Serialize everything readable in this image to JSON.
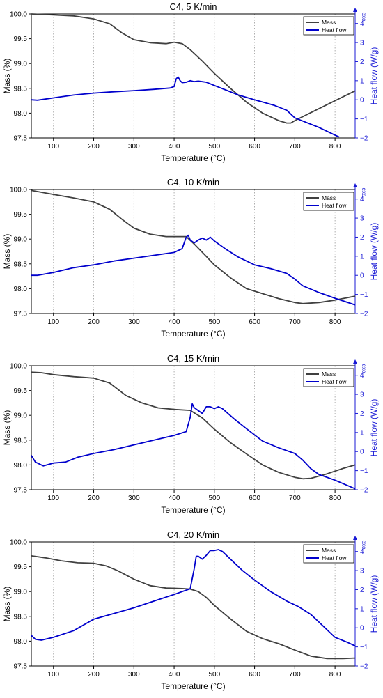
{
  "colors": {
    "mass": "#404040",
    "heat_flow": "#0000cc",
    "right_axis": "#1a1ad6",
    "grid": "#9a9a9a"
  },
  "chart_data": [
    {
      "type": "line",
      "title": "C4, 5 K/min",
      "xlabel": "Temperature (°C)",
      "ylabel": "Mass (%)",
      "y2label": "Heat flow (W/g)",
      "exo_label": "exo",
      "xlim": [
        45,
        850
      ],
      "ylim": [
        97.5,
        100.0
      ],
      "y2lim": [
        -2,
        4.5
      ],
      "xticks": [
        100,
        200,
        300,
        400,
        500,
        600,
        700,
        800
      ],
      "yticks": [
        97.5,
        98.0,
        98.5,
        99.0,
        99.5,
        100.0
      ],
      "y2ticks": [
        -2,
        -1,
        0,
        1,
        2,
        3,
        4
      ],
      "grid": "vertical-dotted",
      "legend": "top-right",
      "series": [
        {
          "name": "Mass",
          "axis": "left",
          "color": "#404040",
          "x": [
            45,
            100,
            150,
            200,
            240,
            270,
            300,
            340,
            380,
            400,
            420,
            440,
            470,
            500,
            540,
            580,
            620,
            660,
            680,
            690,
            700,
            750,
            800,
            850
          ],
          "y": [
            100.0,
            99.98,
            99.96,
            99.9,
            99.8,
            99.62,
            99.48,
            99.42,
            99.4,
            99.43,
            99.4,
            99.28,
            99.05,
            98.8,
            98.5,
            98.22,
            98.0,
            97.85,
            97.8,
            97.8,
            97.85,
            98.05,
            98.25,
            98.45
          ]
        },
        {
          "name": "Heat flow",
          "axis": "right",
          "color": "#0000cc",
          "x": [
            45,
            60,
            100,
            150,
            200,
            250,
            300,
            350,
            390,
            400,
            405,
            410,
            415,
            420,
            430,
            440,
            450,
            460,
            470,
            480,
            500,
            530,
            560,
            600,
            650,
            680,
            700,
            730,
            760,
            800,
            810
          ],
          "y": [
            0.0,
            -0.02,
            0.1,
            0.25,
            0.35,
            0.42,
            0.48,
            0.55,
            0.62,
            0.7,
            1.1,
            1.2,
            1.0,
            0.9,
            0.92,
            1.0,
            0.95,
            0.98,
            0.95,
            0.92,
            0.75,
            0.5,
            0.25,
            0.0,
            -0.3,
            -0.55,
            -0.95,
            -1.2,
            -1.45,
            -1.85,
            -1.95
          ]
        }
      ]
    },
    {
      "type": "line",
      "title": "C4, 10 K/min",
      "xlabel": "Temperature (°C)",
      "ylabel": "Mass (%)",
      "y2label": "Heat flow (W/g)",
      "exo_label": "exo",
      "xlim": [
        45,
        850
      ],
      "ylim": [
        97.5,
        100.0
      ],
      "y2lim": [
        -2,
        4.5
      ],
      "xticks": [
        100,
        200,
        300,
        400,
        500,
        600,
        700,
        800
      ],
      "yticks": [
        97.5,
        98.0,
        98.5,
        99.0,
        99.5,
        100.0
      ],
      "y2ticks": [
        -2,
        -1,
        0,
        1,
        2,
        3,
        4
      ],
      "grid": "vertical-dotted",
      "legend": "top-right",
      "series": [
        {
          "name": "Mass",
          "axis": "left",
          "color": "#404040",
          "x": [
            45,
            100,
            150,
            200,
            240,
            270,
            300,
            340,
            380,
            420,
            430,
            450,
            480,
            500,
            540,
            580,
            620,
            660,
            700,
            720,
            760,
            800,
            850
          ],
          "y": [
            99.98,
            99.9,
            99.83,
            99.75,
            99.6,
            99.4,
            99.22,
            99.1,
            99.05,
            99.05,
            99.05,
            98.9,
            98.65,
            98.48,
            98.22,
            98.0,
            97.9,
            97.8,
            97.72,
            97.7,
            97.72,
            97.77,
            97.85
          ]
        },
        {
          "name": "Heat flow",
          "axis": "right",
          "color": "#0000cc",
          "x": [
            45,
            60,
            100,
            150,
            200,
            250,
            300,
            350,
            400,
            420,
            425,
            430,
            435,
            440,
            450,
            460,
            470,
            480,
            490,
            500,
            530,
            560,
            600,
            640,
            680,
            700,
            720,
            760,
            800,
            850
          ],
          "y": [
            0.0,
            0.0,
            0.15,
            0.4,
            0.55,
            0.75,
            0.9,
            1.05,
            1.2,
            1.4,
            1.7,
            2.0,
            2.1,
            1.85,
            1.7,
            1.85,
            1.95,
            1.85,
            2.0,
            1.8,
            1.35,
            0.95,
            0.55,
            0.35,
            0.1,
            -0.2,
            -0.55,
            -0.9,
            -1.2,
            -1.55
          ]
        }
      ]
    },
    {
      "type": "line",
      "title": "C4, 15 K/min",
      "xlabel": "Temperature (°C)",
      "ylabel": "Mass (%)",
      "y2label": "Heat flow (W/g)",
      "exo_label": "exo",
      "xlim": [
        45,
        850
      ],
      "ylim": [
        97.5,
        100.0
      ],
      "y2lim": [
        -2,
        4.5
      ],
      "xticks": [
        100,
        200,
        300,
        400,
        500,
        600,
        700,
        800
      ],
      "yticks": [
        97.5,
        98.0,
        98.5,
        99.0,
        99.5,
        100.0
      ],
      "y2ticks": [
        -2,
        -1,
        0,
        1,
        2,
        3,
        4
      ],
      "grid": "vertical-dotted",
      "legend": "top-right",
      "series": [
        {
          "name": "Mass",
          "axis": "left",
          "color": "#404040",
          "x": [
            45,
            70,
            100,
            150,
            200,
            240,
            280,
            320,
            360,
            400,
            440,
            470,
            500,
            540,
            580,
            620,
            660,
            700,
            720,
            740,
            780,
            820,
            850
          ],
          "y": [
            99.87,
            99.86,
            99.82,
            99.78,
            99.75,
            99.65,
            99.4,
            99.25,
            99.15,
            99.12,
            99.1,
            98.95,
            98.72,
            98.45,
            98.22,
            98.0,
            97.85,
            97.75,
            97.72,
            97.73,
            97.82,
            97.93,
            98.0
          ]
        },
        {
          "name": "Heat flow",
          "axis": "right",
          "color": "#0000cc",
          "x": [
            45,
            55,
            75,
            100,
            130,
            160,
            200,
            250,
            300,
            350,
            400,
            430,
            440,
            445,
            450,
            460,
            470,
            480,
            490,
            500,
            510,
            520,
            550,
            580,
            620,
            660,
            700,
            720,
            740,
            760,
            800,
            850
          ],
          "y": [
            -0.2,
            -0.55,
            -0.75,
            -0.6,
            -0.55,
            -0.3,
            -0.1,
            0.1,
            0.35,
            0.6,
            0.85,
            1.05,
            1.8,
            2.5,
            2.3,
            2.15,
            2.0,
            2.35,
            2.35,
            2.25,
            2.35,
            2.25,
            1.7,
            1.2,
            0.55,
            0.2,
            -0.1,
            -0.45,
            -0.9,
            -1.2,
            -1.5,
            -1.95
          ]
        }
      ]
    },
    {
      "type": "line",
      "title": "C4, 20 K/min",
      "xlabel": "Temperature (°C)",
      "ylabel": "Mass (%)",
      "y2label": "Heat flow (W/g)",
      "exo_label": "exo",
      "xlim": [
        45,
        850
      ],
      "ylim": [
        97.5,
        100.0
      ],
      "y2lim": [
        -2,
        4.5
      ],
      "xticks": [
        100,
        200,
        300,
        400,
        500,
        600,
        700,
        800
      ],
      "yticks": [
        97.5,
        98.0,
        98.5,
        99.0,
        99.5,
        100.0
      ],
      "y2ticks": [
        -2,
        -1,
        0,
        1,
        2,
        3,
        4
      ],
      "grid": "vertical-dotted",
      "legend": "top-right",
      "series": [
        {
          "name": "Mass",
          "axis": "left",
          "color": "#404040",
          "x": [
            45,
            80,
            120,
            160,
            200,
            230,
            260,
            300,
            340,
            380,
            420,
            440,
            460,
            480,
            500,
            540,
            580,
            620,
            660,
            700,
            740,
            780,
            820,
            850
          ],
          "y": [
            99.72,
            99.68,
            99.62,
            99.58,
            99.57,
            99.52,
            99.42,
            99.25,
            99.12,
            99.07,
            99.06,
            99.05,
            99.0,
            98.88,
            98.72,
            98.45,
            98.2,
            98.05,
            97.95,
            97.82,
            97.7,
            97.65,
            97.65,
            97.66
          ]
        },
        {
          "name": "Heat flow",
          "axis": "right",
          "color": "#0000cc",
          "x": [
            45,
            55,
            70,
            100,
            150,
            200,
            250,
            300,
            350,
            400,
            440,
            450,
            455,
            460,
            470,
            480,
            490,
            500,
            510,
            520,
            540,
            570,
            600,
            640,
            680,
            710,
            740,
            770,
            800,
            830,
            850
          ],
          "y": [
            -0.4,
            -0.6,
            -0.65,
            -0.5,
            -0.15,
            0.45,
            0.75,
            1.05,
            1.4,
            1.75,
            2.05,
            3.1,
            3.75,
            3.75,
            3.6,
            3.8,
            4.05,
            4.05,
            4.1,
            4.0,
            3.6,
            3.0,
            2.5,
            1.9,
            1.4,
            1.1,
            0.7,
            0.1,
            -0.5,
            -0.75,
            -0.95
          ]
        }
      ]
    }
  ]
}
